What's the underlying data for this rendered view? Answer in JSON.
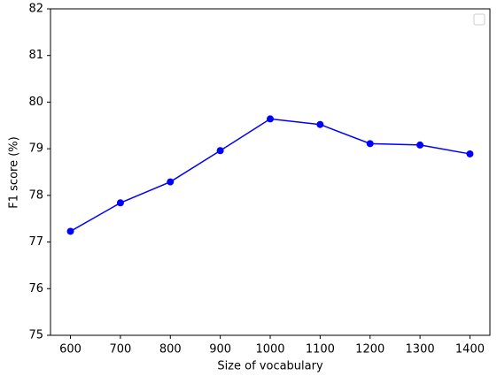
{
  "chart_data": {
    "type": "line",
    "xlabel": "Size of vocabulary",
    "ylabel": "F1 score (%)",
    "x": [
      600,
      700,
      800,
      900,
      1000,
      1100,
      1200,
      1300,
      1400
    ],
    "series": [
      {
        "color": "#0000ff",
        "values": [
          77.23,
          77.84,
          78.29,
          78.96,
          79.64,
          79.52,
          79.11,
          79.08,
          78.89
        ]
      }
    ],
    "xlim": [
      560,
      1440
    ],
    "xticks": [
      600,
      700,
      800,
      900,
      1000,
      1100,
      1200,
      1300,
      1400
    ],
    "ylim": [
      75,
      82
    ],
    "yticks": [
      75,
      76,
      77,
      78,
      79,
      80,
      81,
      82
    ],
    "grid": false,
    "legend": "upper right"
  }
}
